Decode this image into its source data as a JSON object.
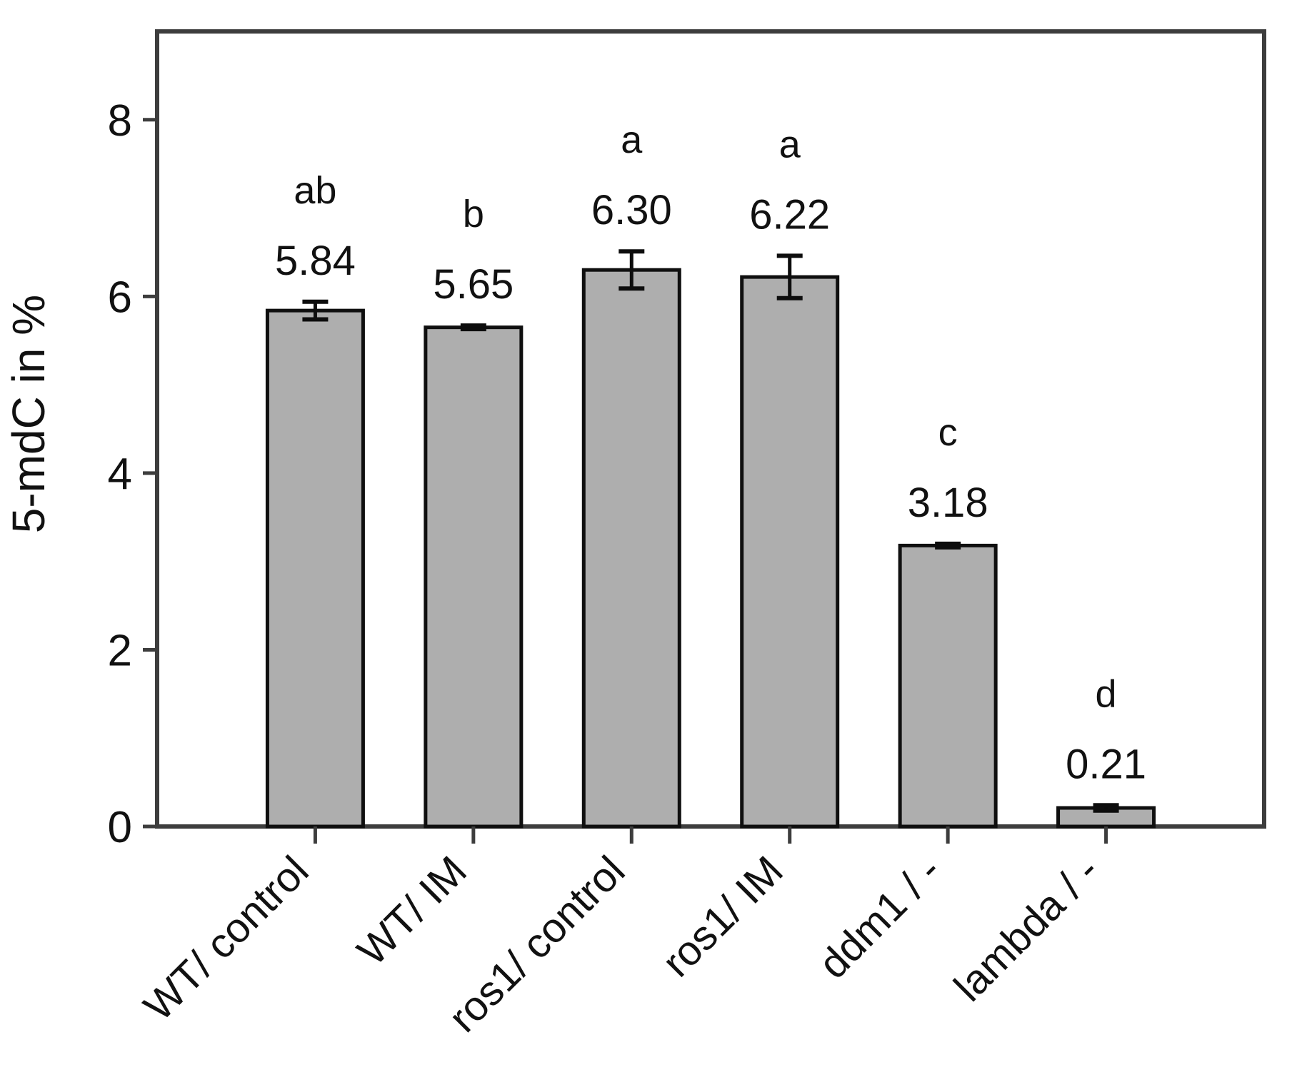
{
  "chart_data": {
    "type": "bar",
    "title": "",
    "xlabel": "",
    "ylabel": "5-mdC in %",
    "categories": [
      "WT/ control",
      "WT/ IM",
      "ros1/ control",
      "ros1/ IM",
      "ddm1 / -",
      "lambda / -"
    ],
    "values": [
      5.84,
      5.65,
      6.3,
      6.22,
      3.18,
      0.21
    ],
    "value_labels": [
      "5.84",
      "5.65",
      "6.30",
      "6.22",
      "3.18",
      "0.21"
    ],
    "errors": [
      0.1,
      0.02,
      0.21,
      0.24,
      0.02,
      0.03
    ],
    "sig_letters": [
      "ab",
      "b",
      "a",
      "a",
      "c",
      "d"
    ],
    "yticks": [
      0,
      2,
      4,
      6,
      8
    ],
    "ytick_labels": [
      "0",
      "2",
      "4",
      "6",
      "8"
    ],
    "ylim": [
      0,
      9.0
    ],
    "grid": false,
    "legend": null,
    "error_bars": true,
    "colors": {
      "bar_fill": "#aeaeae",
      "bar_border": "#0f0f0f",
      "axis": "#3d3d3d",
      "error_bar": "#0d0d0d",
      "text": "#111111",
      "background": "#ffffff"
    }
  }
}
